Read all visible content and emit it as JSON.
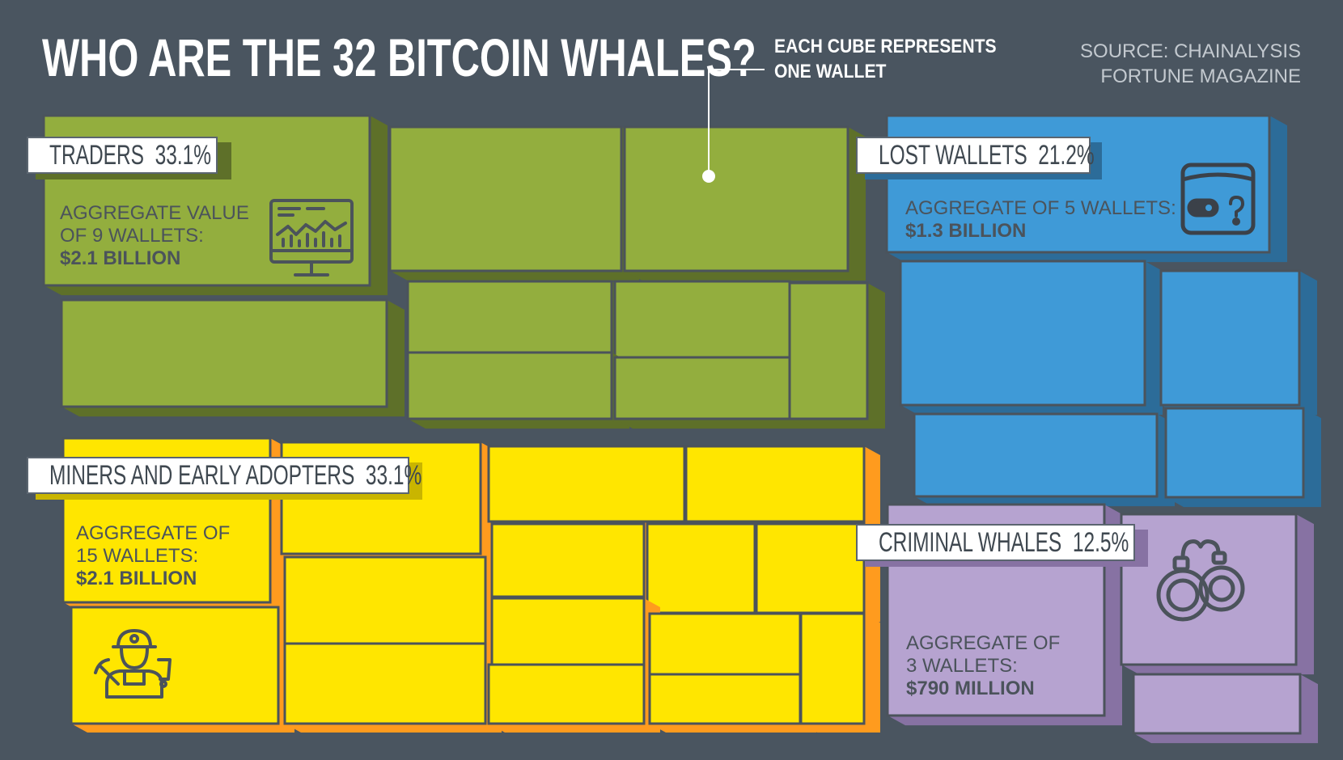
{
  "header": {
    "title": "WHO ARE THE 32 BITCOIN WHALES?",
    "note_line1": "EACH CUBE REPRESENTS",
    "note_line2": "ONE WALLET",
    "source_line1": "SOURCE: CHAINALYSIS",
    "source_line2": "FORTUNE MAGAZINE"
  },
  "chart_data": {
    "type": "treemap",
    "title": "WHO ARE THE 32 BITCOIN WHALES?",
    "total_wallets": 32,
    "unit_note": "EACH CUBE REPRESENTS ONE WALLET",
    "categories": [
      {
        "name": "TRADERS",
        "share_label": "33.1%",
        "share": 33.1,
        "wallets": 9,
        "aggregate_value": "$2.1 BILLION",
        "agg_line1": "AGGREGATE VALUE",
        "agg_line2": "OF 9 WALLETS:",
        "agg_value": "$2.1 BILLION",
        "color": "#93ae3e",
        "icon": "trading-monitor-icon"
      },
      {
        "name": "LOST WALLETS",
        "share_label": "21.2%",
        "share": 21.2,
        "wallets": 5,
        "aggregate_value": "$1.3 BILLION",
        "agg_line1": "AGGREGATE OF 5 WALLETS:",
        "agg_line2": "",
        "agg_value": "$1.3 BILLION",
        "color": "#3f9ad7",
        "icon": "wallet-question-icon"
      },
      {
        "name": "MINERS AND EARLY ADOPTERS",
        "share_label": "33.1%",
        "share": 33.1,
        "wallets": 15,
        "aggregate_value": "$2.1 BILLION",
        "agg_line1": "AGGREGATE OF",
        "agg_line2": "15 WALLETS:",
        "agg_value": "$2.1 BILLION",
        "color": "#ffe600",
        "icon": "miner-icon"
      },
      {
        "name": "CRIMINAL WHALES",
        "share_label": "12.5%",
        "share": 12.5,
        "wallets": 3,
        "aggregate_value": "$790 MILLION",
        "agg_line1": "AGGREGATE OF",
        "agg_line2": "3 WALLETS:",
        "agg_value": "$790 MILLION",
        "color": "#b6a3d0",
        "icon": "handcuffs-icon"
      }
    ]
  },
  "colors": {
    "background": "#4a5560",
    "traders_front": "#93ae3e",
    "traders_side": "#5e7029",
    "lost_front": "#3f9ad7",
    "lost_side": "#2c6c99",
    "miners_front": "#ffe600",
    "miners_side": "#ff9b1e",
    "criminal_front": "#b6a3d0",
    "criminal_side": "#8772a3",
    "outline": "#4b535b"
  }
}
